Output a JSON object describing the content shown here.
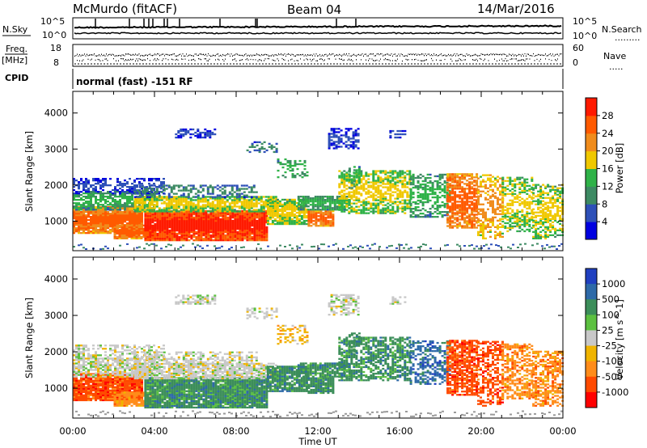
{
  "header": {
    "station": "McMurdo (fitACF)",
    "beam": "Beam 04",
    "date": "14/Mar/2016"
  },
  "left_labels": {
    "nsky": "N.Sky",
    "freq": "Freq.",
    "freq_unit": "[MHz]",
    "cpid": "CPID"
  },
  "right_labels": {
    "nsearch": "N.Search",
    "nsearch_dots": ".........",
    "nave": "Nave",
    "nave_dots": "....."
  },
  "noise_panel": {
    "left_ticks": [
      "10^5",
      "10^0"
    ],
    "right_ticks": [
      "10^5",
      "10^0"
    ]
  },
  "freq_panel": {
    "left_ticks": [
      "18",
      "8"
    ],
    "right_ticks": [
      "60",
      "0"
    ]
  },
  "cpid_text": "normal (fast) -151 RF",
  "chart_data": [
    {
      "type": "heatmap",
      "title": "",
      "quantity": "Power",
      "ylabel": "Slant Range [km]",
      "xlabel": "Time UT",
      "x_ticks": [
        "00:00",
        "04:00",
        "08:00",
        "12:00",
        "16:00",
        "20:00",
        "00:00"
      ],
      "x_range_hours": [
        0,
        24
      ],
      "y_ticks": [
        1000,
        2000,
        3000,
        4000
      ],
      "ylim": [
        180,
        4600
      ],
      "colorbar": {
        "label": "Power [dB]",
        "ticks": [
          "4",
          "8",
          "12",
          "16",
          "20",
          "24",
          "28"
        ],
        "colors": [
          "#0000e0",
          "#2e50b8",
          "#3d8a63",
          "#2fb248",
          "#f0c800",
          "#f08c1c",
          "#ff5a00",
          "#ff1a00"
        ]
      }
    },
    {
      "type": "heatmap",
      "title": "",
      "quantity": "Velocity",
      "ylabel": "Slant Range [km]",
      "xlabel": "Time UT",
      "x_ticks": [
        "00:00",
        "04:00",
        "08:00",
        "12:00",
        "16:00",
        "20:00",
        "00:00"
      ],
      "x_range_hours": [
        0,
        24
      ],
      "y_ticks": [
        1000,
        2000,
        3000,
        4000
      ],
      "ylim": [
        180,
        4600
      ],
      "colorbar": {
        "label": "Velocity [m s^-1]",
        "ticks": [
          "1000",
          "500",
          "100",
          "25",
          "-25",
          "-100",
          "-500",
          "-1000"
        ],
        "colors": [
          "#2040c0",
          "#2e6aa8",
          "#3c8e5a",
          "#5cc040",
          "#c8c8c8",
          "#f0b400",
          "#ff8c1a",
          "#ff4a00",
          "#ff0000"
        ]
      }
    }
  ],
  "colors": {
    "ground_scatter": "#9a9a9a"
  }
}
